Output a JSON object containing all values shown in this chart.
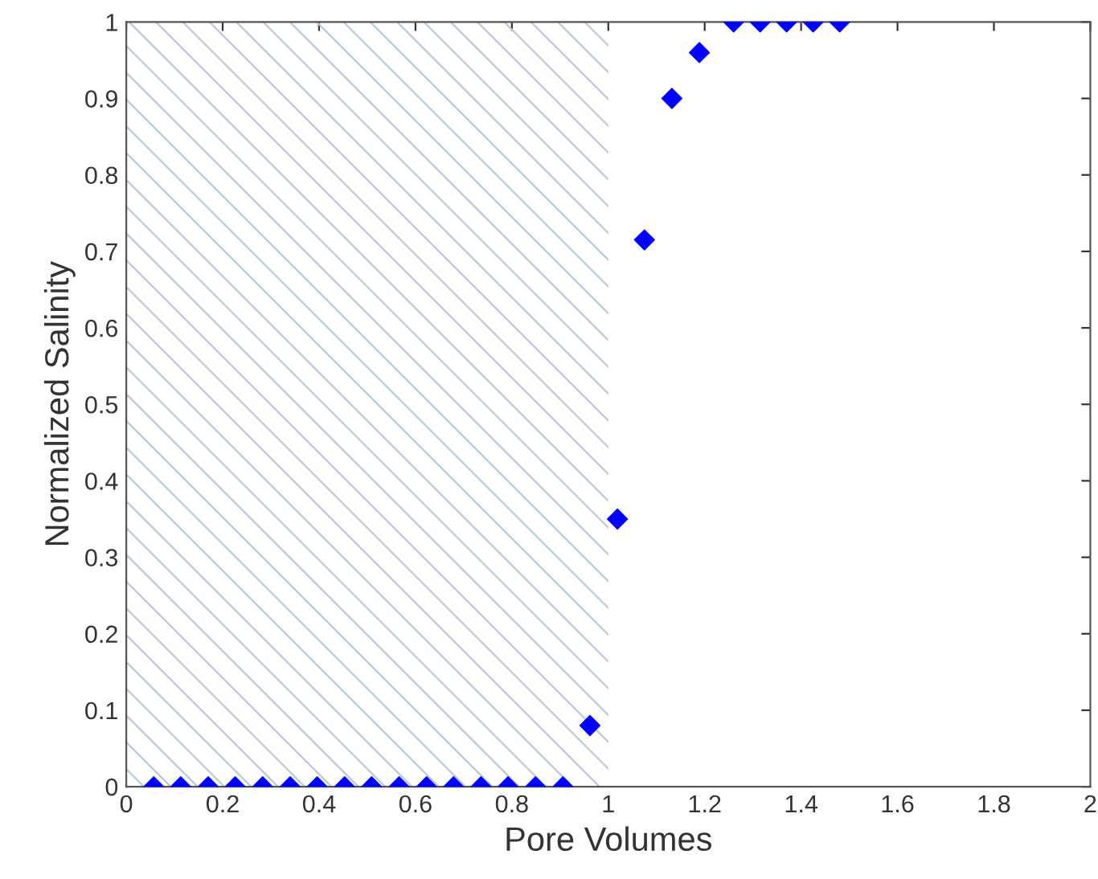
{
  "chart_data": {
    "type": "scatter",
    "xlabel": "Pore Volumes",
    "ylabel": "Normalized Salinity",
    "x": [
      0.057,
      0.113,
      0.17,
      0.226,
      0.283,
      0.34,
      0.396,
      0.453,
      0.509,
      0.566,
      0.623,
      0.679,
      0.736,
      0.792,
      0.849,
      0.906,
      0.962,
      1.019,
      1.075,
      1.132,
      1.189,
      1.26,
      1.315,
      1.37,
      1.425,
      1.48
    ],
    "series": [
      {
        "color": "#0000ff",
        "values": [
          0,
          0,
          0,
          0,
          0,
          0,
          0,
          0,
          0,
          0,
          0,
          0,
          0,
          0,
          0,
          0,
          0.08,
          0.35,
          0.715,
          0.9,
          0.96,
          1,
          1,
          1,
          1,
          1
        ]
      }
    ],
    "marker": "diamond",
    "xlim": [
      0,
      2
    ],
    "ylim": [
      0,
      1
    ],
    "xticks": [
      0,
      0.2,
      0.4,
      0.6,
      0.8,
      1,
      1.2,
      1.4,
      1.6,
      1.8,
      2
    ],
    "yticks": [
      0,
      0.1,
      0.2,
      0.3,
      0.4,
      0.5,
      0.6,
      0.7,
      0.8,
      0.9,
      1
    ],
    "bands": [
      {
        "axis": "x",
        "from": 0,
        "to": 1.0,
        "color": "#b8c8e0"
      }
    ],
    "grid": false,
    "legend": false
  }
}
